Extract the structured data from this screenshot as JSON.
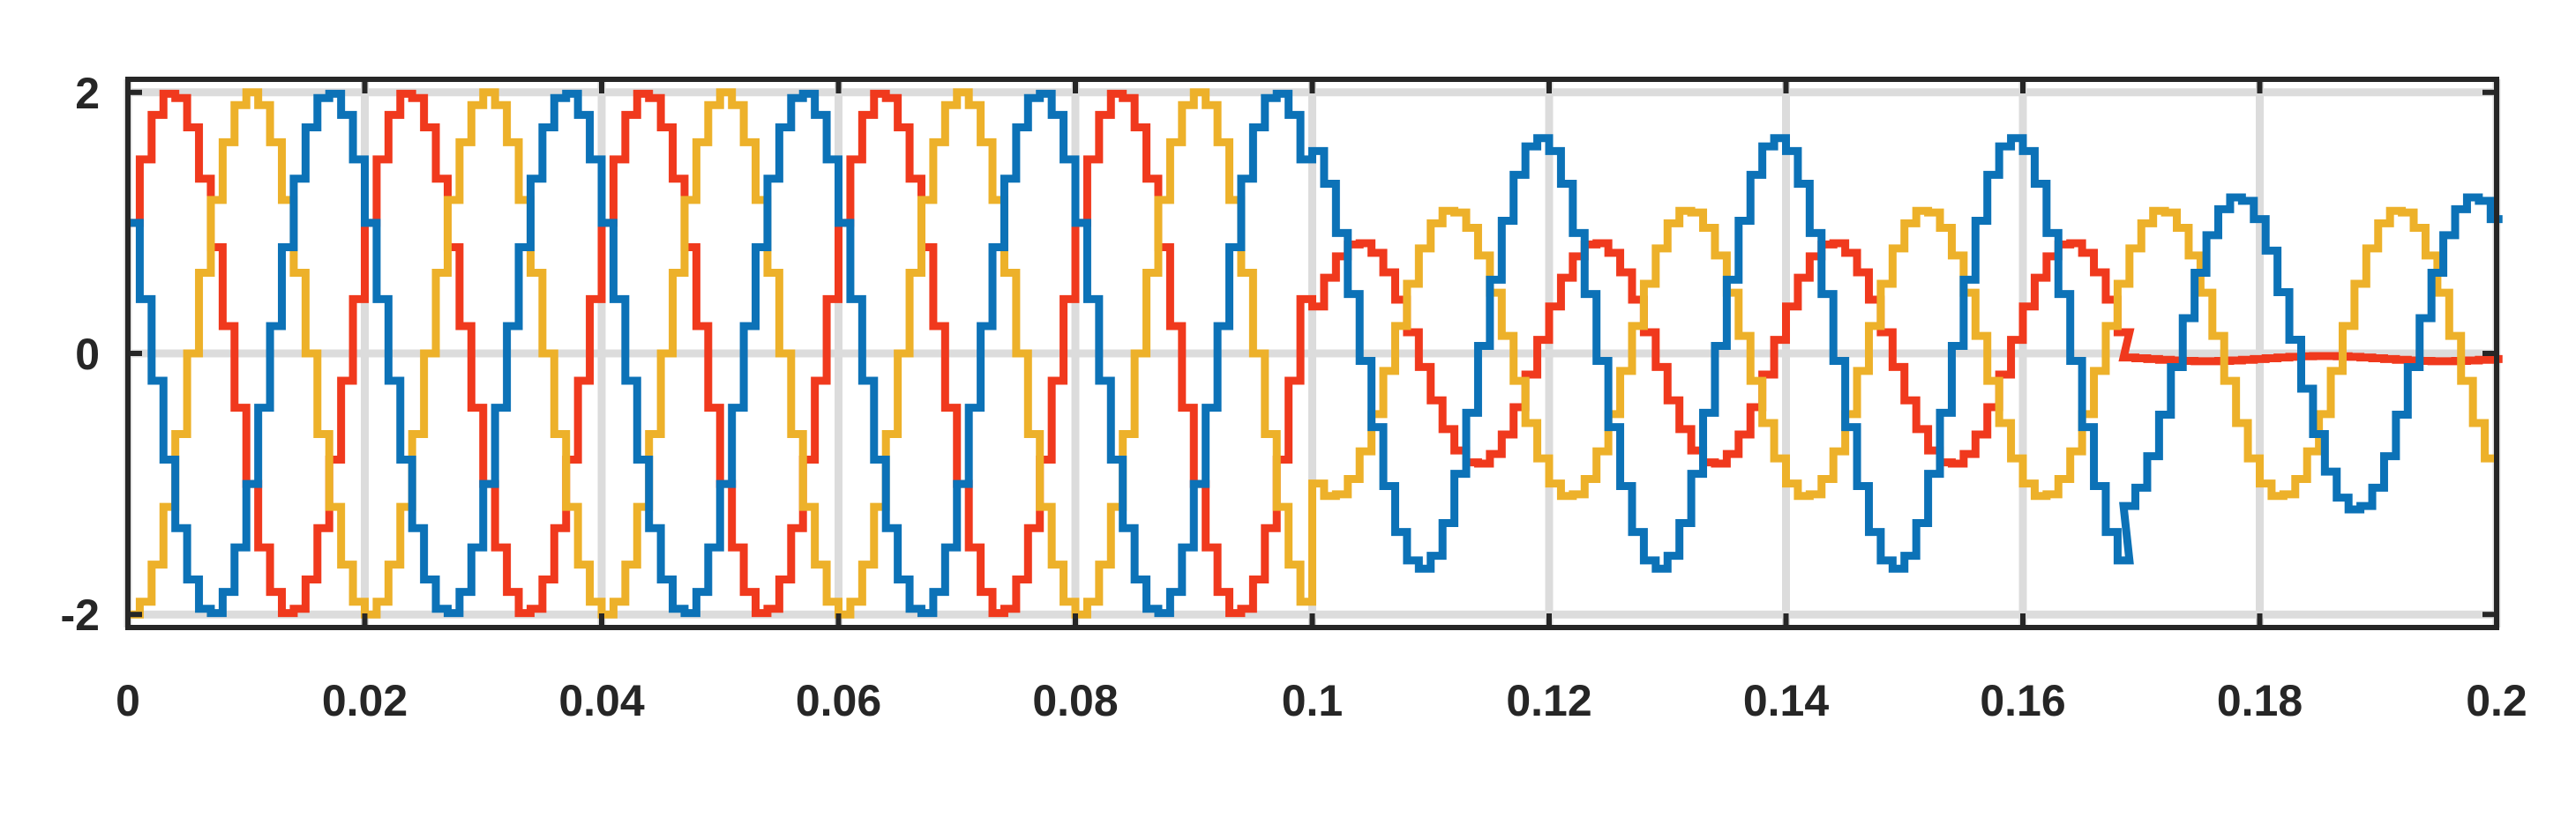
{
  "chart_data": {
    "type": "line",
    "title": "",
    "xlabel": "",
    "ylabel": "",
    "xlim": [
      0,
      0.2
    ],
    "ylim": [
      -2.1,
      2.1
    ],
    "grid": true,
    "legend": "none",
    "x_ticks": [
      0,
      0.02,
      0.04,
      0.06,
      0.08,
      0.1,
      0.12,
      0.14,
      0.16,
      0.18,
      0.2
    ],
    "x_tick_labels": [
      "0",
      "0.02",
      "0.04",
      "0.06",
      "0.08",
      "0.1",
      "0.12",
      "0.14",
      "0.16",
      "0.18",
      "0.2"
    ],
    "y_ticks": [
      -2,
      0,
      2
    ],
    "y_tick_labels": [
      "-2",
      "0",
      "2"
    ],
    "sample_step": 0.001,
    "series": [
      {
        "color": "#f0391d",
        "segments": [
          {
            "x_start": 0,
            "x_end": 0.1,
            "amplitude": 2,
            "frequency": 50,
            "phase_deg": 30,
            "offset": 0
          },
          {
            "x_start": 0.1,
            "x_end": 0.1685,
            "amplitude": 0.85,
            "frequency": 50,
            "phase_deg": 25,
            "offset": 0
          },
          {
            "x_start": 0.1685,
            "x_end": 0.2,
            "amplitude": 0.02,
            "frequency": 50,
            "phase_deg": 0,
            "offset": -0.04
          }
        ]
      },
      {
        "color": "#edb12a",
        "segments": [
          {
            "x_start": 0,
            "x_end": 0.1,
            "amplitude": 2,
            "frequency": 50,
            "phase_deg": 270,
            "offset": 0
          },
          {
            "x_start": 0.1,
            "x_end": 0.2,
            "amplitude": 1.1,
            "frequency": 50,
            "phase_deg": 245,
            "offset": 0
          }
        ]
      },
      {
        "color": "#0c72b7",
        "segments": [
          {
            "x_start": 0,
            "x_end": 0.1,
            "amplitude": 2,
            "frequency": 50,
            "phase_deg": 150,
            "offset": 0
          },
          {
            "x_start": 0.1,
            "x_end": 0.1685,
            "amplitude": 1.65,
            "frequency": 50,
            "phase_deg": 110,
            "offset": 0
          },
          {
            "x_start": 0.1685,
            "x_end": 0.2,
            "amplitude": 1.2,
            "frequency": 50,
            "phase_deg": 130,
            "offset": 0
          }
        ]
      }
    ]
  }
}
